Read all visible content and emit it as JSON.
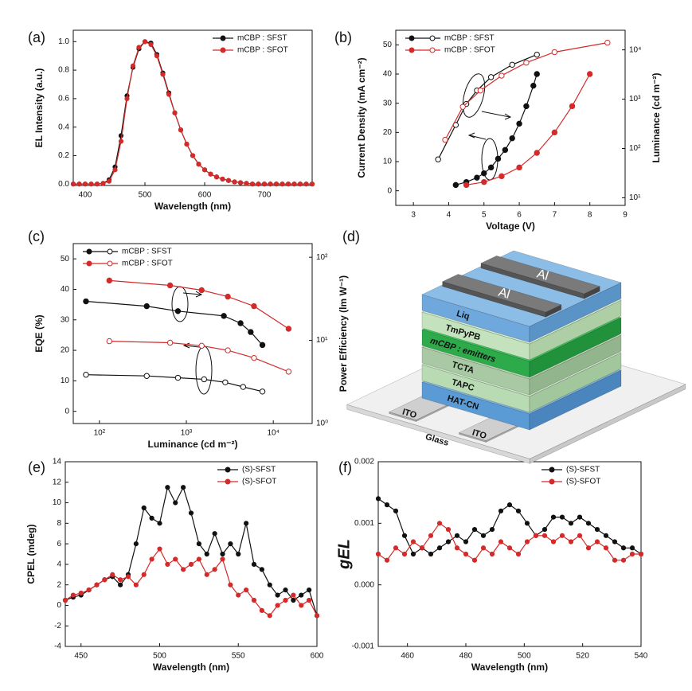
{
  "chart_data": [
    {
      "type": "line",
      "panel_label": "(a)",
      "xlabel": "Wavelength (nm)",
      "ylabel": "EL Intensity (a.u.)",
      "xlim": [
        380,
        780
      ],
      "xticks": [
        400,
        500,
        600,
        700
      ],
      "ylim": [
        -0.01,
        1.08
      ],
      "yticks": [
        {
          "value": 0,
          "label": "0.0"
        },
        0.2,
        0.4,
        0.6,
        0.8,
        {
          "value": 1,
          "label": "1.0"
        }
      ],
      "legend": "upper right",
      "x": [
        380,
        390,
        400,
        410,
        420,
        430,
        440,
        450,
        460,
        470,
        480,
        490,
        500,
        510,
        520,
        530,
        540,
        550,
        560,
        570,
        580,
        590,
        600,
        610,
        620,
        630,
        640,
        650,
        660,
        670,
        680,
        690,
        700,
        710,
        720,
        730,
        740,
        750,
        760,
        770,
        780
      ],
      "series": [
        {
          "name": "mCBP : SFST",
          "color": "#111111",
          "marker": "filled",
          "values": [
            0,
            0,
            0,
            0,
            0,
            0.005,
            0.03,
            0.12,
            0.34,
            0.62,
            0.82,
            0.95,
            1.0,
            0.99,
            0.91,
            0.78,
            0.64,
            0.5,
            0.38,
            0.28,
            0.2,
            0.14,
            0.1,
            0.07,
            0.05,
            0.035,
            0.025,
            0.015,
            0.01,
            0.005,
            0,
            0,
            0,
            0,
            0,
            0,
            0,
            0,
            0,
            0,
            0
          ]
        },
        {
          "name": "mCBP : SFOT",
          "color": "#d42a2a",
          "marker": "filled",
          "values": [
            0,
            0,
            0,
            0,
            0,
            0.005,
            0.02,
            0.1,
            0.3,
            0.6,
            0.83,
            0.96,
            1.0,
            0.98,
            0.9,
            0.77,
            0.63,
            0.5,
            0.38,
            0.28,
            0.2,
            0.14,
            0.1,
            0.07,
            0.05,
            0.035,
            0.025,
            0.015,
            0.01,
            0.005,
            0,
            0,
            0,
            0,
            0,
            0,
            0,
            0,
            0,
            0,
            0
          ]
        }
      ]
    },
    {
      "type": "line",
      "panel_label": "(b)",
      "xlabel": "Voltage (V)",
      "ylabel": "Current Density (mA cm⁻²)",
      "y2label": "Luminance (cd m⁻²)",
      "xlim": [
        2.5,
        9
      ],
      "xticks": [
        3,
        4,
        5,
        6,
        7,
        8,
        9
      ],
      "ylim": [
        -5,
        55
      ],
      "yticks": [
        0,
        10,
        20,
        30,
        40,
        50
      ],
      "y2lim": [
        7,
        25000
      ],
      "y2log": true,
      "y2ticks": [
        {
          "value": 10,
          "label": "10¹"
        },
        {
          "value": 100,
          "label": "10²"
        },
        {
          "value": 1000,
          "label": "10³"
        },
        {
          "value": 10000,
          "label": "10⁴"
        }
      ],
      "legend": "upper left",
      "series": [
        {
          "name": "mCBP : SFST",
          "color": "#111111",
          "marker": "filled",
          "x": [
            4.2,
            4.5,
            4.8,
            5.0,
            5.2,
            5.4,
            5.6,
            5.8,
            6.0,
            6.2,
            6.4,
            6.5
          ],
          "values": [
            2,
            3,
            4.5,
            6,
            8,
            11,
            14,
            18,
            23,
            29,
            36,
            40
          ]
        },
        {
          "name": "mCBP : SFOT",
          "color": "#d42a2a",
          "marker": "filled",
          "x": [
            4.5,
            5.0,
            5.5,
            6.0,
            6.5,
            7.0,
            7.5,
            8.0
          ],
          "values": [
            2,
            3,
            5,
            8,
            13,
            20,
            29,
            40
          ]
        },
        {
          "color": "#111111",
          "marker": "open",
          "axis": "y2",
          "x": [
            3.7,
            4.2,
            4.5,
            4.8,
            5.2,
            5.8,
            6.5
          ],
          "values": [
            60,
            300,
            800,
            1500,
            2800,
            5000,
            8000
          ]
        },
        {
          "color": "#d42a2a",
          "marker": "open",
          "axis": "y2",
          "x": [
            3.9,
            4.4,
            4.9,
            5.5,
            6.2,
            7.0,
            8.5
          ],
          "values": [
            150,
            700,
            1500,
            3000,
            5500,
            9000,
            14000
          ]
        }
      ]
    },
    {
      "type": "line",
      "panel_label": "(c)",
      "xlabel": "Luminance (cd m⁻²)",
      "ylabel": "EQE (%)",
      "y2label": "Power Efficiency (lm W⁻¹)",
      "xlim": [
        50,
        28000
      ],
      "xlog": true,
      "xticks": [
        {
          "value": 100,
          "label": "10²"
        },
        {
          "value": 1000,
          "label": "10³"
        },
        {
          "value": 10000,
          "label": "10⁴"
        }
      ],
      "ylim": [
        -4,
        55
      ],
      "yticks": [
        0,
        10,
        20,
        30,
        40,
        50
      ],
      "y2lim": [
        1,
        146
      ],
      "y2log": true,
      "y2ticks": [
        {
          "value": 1,
          "label": "10⁰"
        },
        {
          "value": 10,
          "label": "10¹"
        },
        {
          "value": 100,
          "label": "10²"
        }
      ],
      "legend": "upper left",
      "series": [
        {
          "name": "mCBP : SFST",
          "color": "#111111",
          "marker": "filled",
          "axis": "y2",
          "x": [
            70,
            350,
            800,
            2700,
            4200,
            5500,
            7500
          ],
          "values": [
            29.5,
            25.8,
            22.5,
            19.7,
            16.1,
            12.6,
            8.8
          ]
        },
        {
          "name": "mCBP : SFOT",
          "color": "#d42a2a",
          "marker": "filled",
          "axis": "y2",
          "x": [
            130,
            650,
            1500,
            3000,
            6000,
            15000
          ],
          "values": [
            52.5,
            45.9,
            40.2,
            33.6,
            25.8,
            13.8
          ]
        },
        {
          "color": "#111111",
          "marker": "open",
          "x": [
            70,
            350,
            800,
            1600,
            2800,
            4500,
            7500
          ],
          "values": [
            12,
            11.6,
            11,
            10.5,
            9.5,
            8,
            6.5
          ]
        },
        {
          "color": "#d42a2a",
          "marker": "open",
          "x": [
            130,
            650,
            1500,
            3000,
            6000,
            15000
          ],
          "values": [
            23,
            22.5,
            21.5,
            20,
            17.5,
            13
          ]
        }
      ]
    },
    {
      "type": "line",
      "panel_label": "(e)",
      "xlabel": "Wavelength (nm)",
      "ylabel": "CPEL (mdeg)",
      "xlim": [
        440,
        600
      ],
      "xticks": [
        450,
        500,
        550,
        600
      ],
      "ylim": [
        -4,
        14
      ],
      "yticks": [
        -4,
        -2,
        0,
        2,
        4,
        6,
        8,
        10,
        12,
        14
      ],
      "legend": "upper right",
      "x": [
        440,
        445,
        450,
        455,
        460,
        465,
        470,
        475,
        480,
        485,
        490,
        495,
        500,
        505,
        510,
        515,
        520,
        525,
        530,
        535,
        540,
        545,
        550,
        555,
        560,
        565,
        570,
        575,
        580,
        585,
        590,
        595,
        600
      ],
      "series": [
        {
          "name": "(S)-SFST",
          "color": "#111111",
          "marker": "filled",
          "values": [
            0.5,
            0.8,
            1,
            1.5,
            2,
            2.5,
            2.8,
            2,
            3,
            6,
            9.5,
            8.5,
            8,
            11.5,
            10,
            11.5,
            9,
            6,
            5,
            7,
            5,
            6,
            5,
            8,
            4,
            3.5,
            2,
            1,
            1.5,
            0.5,
            1,
            1.5,
            -1
          ]
        },
        {
          "name": "(S)-SFOT",
          "color": "#d42a2a",
          "marker": "filled",
          "values": [
            0.5,
            1,
            1.2,
            1.5,
            2,
            2.5,
            3,
            2.5,
            2.8,
            2,
            3,
            4.5,
            5.5,
            4,
            4.5,
            3.5,
            4,
            4.5,
            3,
            3.5,
            4.5,
            2,
            1,
            1.5,
            0.5,
            -0.5,
            -1,
            0,
            0.5,
            1,
            0,
            0.5,
            -1
          ]
        }
      ]
    },
    {
      "type": "line",
      "panel_label": "(f)",
      "xlabel": "Wavelength (nm)",
      "ylabel": "gEL",
      "xlim": [
        450,
        540
      ],
      "xticks": [
        460,
        480,
        500,
        520,
        540
      ],
      "ylim": [
        -0.001,
        0.002
      ],
      "yticks": [
        -0.001,
        {
          "value": 0,
          "label": "0.000"
        },
        0.001,
        0.002
      ],
      "legend": "upper right",
      "x": [
        450,
        453,
        456,
        459,
        462,
        465,
        468,
        471,
        474,
        477,
        480,
        483,
        486,
        489,
        492,
        495,
        498,
        501,
        504,
        507,
        510,
        513,
        516,
        519,
        522,
        525,
        528,
        531,
        534,
        537,
        540
      ],
      "series": [
        {
          "name": "(S)-SFST",
          "color": "#111111",
          "marker": "filled",
          "values": [
            0.0014,
            0.0013,
            0.0012,
            0.0008,
            0.0005,
            0.0006,
            0.0005,
            0.0006,
            0.0007,
            0.0008,
            0.0007,
            0.0009,
            0.0008,
            0.0009,
            0.0012,
            0.0013,
            0.0012,
            0.001,
            0.0008,
            0.0009,
            0.0011,
            0.0011,
            0.001,
            0.0011,
            0.001,
            0.0009,
            0.0008,
            0.0007,
            0.0006,
            0.0006,
            0.0005
          ]
        },
        {
          "name": "(S)-SFOT",
          "color": "#d42a2a",
          "marker": "filled",
          "values": [
            0.0005,
            0.0004,
            0.0006,
            0.0005,
            0.0007,
            0.0006,
            0.0008,
            0.001,
            0.0009,
            0.0006,
            0.0005,
            0.0004,
            0.0006,
            0.0005,
            0.0007,
            0.0006,
            0.0005,
            0.0007,
            0.0008,
            0.0008,
            0.0007,
            0.0008,
            0.0007,
            0.0008,
            0.0006,
            0.0007,
            0.0006,
            0.0004,
            0.0004,
            0.0005,
            0.0005
          ]
        }
      ]
    }
  ],
  "diagram": {
    "panel_label": "(d)",
    "layers": [
      "HAT-CN",
      "TAPC",
      "TCTA",
      "mCBP : emitters",
      "TmPyPB",
      "Liq"
    ],
    "electrodes": [
      "Al",
      "Al"
    ],
    "anodes": [
      "ITO",
      "ITO"
    ],
    "substrate": "Glass"
  }
}
